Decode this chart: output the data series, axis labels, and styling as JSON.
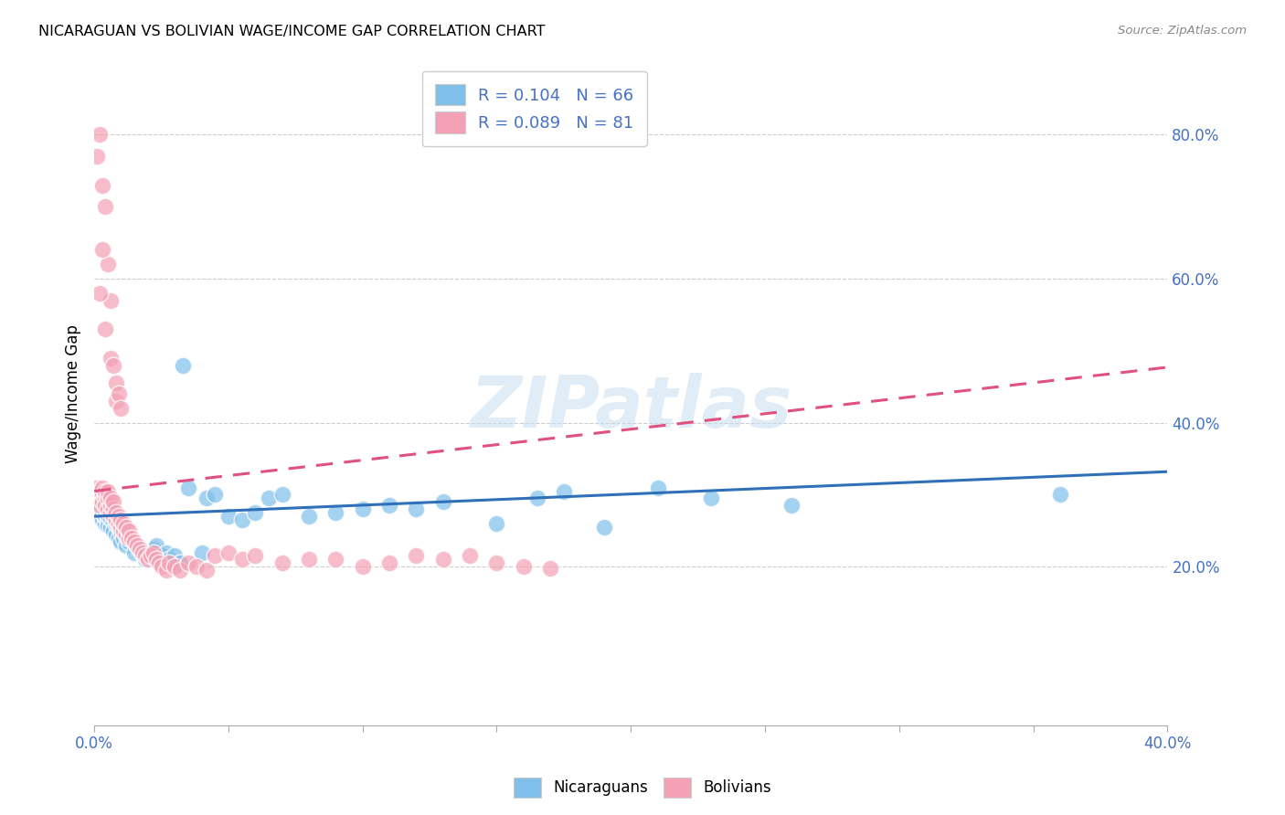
{
  "title": "NICARAGUAN VS BOLIVIAN WAGE/INCOME GAP CORRELATION CHART",
  "source": "Source: ZipAtlas.com",
  "ylabel": "Wage/Income Gap",
  "right_yticks": [
    0.2,
    0.4,
    0.6,
    0.8
  ],
  "right_yticklabels": [
    "20.0%",
    "40.0%",
    "60.0%",
    "80.0%"
  ],
  "xlim": [
    0.0,
    0.4
  ],
  "ylim": [
    -0.02,
    0.9
  ],
  "r_nicaraguan": 0.104,
  "n_nicaraguan": 66,
  "r_bolivian": 0.089,
  "n_bolivian": 81,
  "blue_color": "#7fbfea",
  "pink_color": "#f4a0b5",
  "blue_line_color": "#3070b8",
  "pink_line_color": "#e05080",
  "watermark": "ZIPatlas",
  "legend_label_nicaraguan": "Nicaraguans",
  "legend_label_bolivian": "Bolivians",
  "blue_intercept": 0.27,
  "blue_slope": 0.155,
  "pink_intercept": 0.305,
  "pink_slope": 0.43,
  "blue_scatter_x": [
    0.001,
    0.002,
    0.002,
    0.003,
    0.003,
    0.003,
    0.004,
    0.004,
    0.004,
    0.005,
    0.005,
    0.005,
    0.006,
    0.006,
    0.007,
    0.007,
    0.008,
    0.008,
    0.009,
    0.009,
    0.01,
    0.01,
    0.011,
    0.011,
    0.012,
    0.012,
    0.013,
    0.014,
    0.015,
    0.016,
    0.017,
    0.018,
    0.019,
    0.02,
    0.021,
    0.022,
    0.023,
    0.025,
    0.027,
    0.028,
    0.03,
    0.032,
    0.033,
    0.035,
    0.04,
    0.042,
    0.045,
    0.05,
    0.055,
    0.06,
    0.065,
    0.07,
    0.08,
    0.09,
    0.1,
    0.11,
    0.12,
    0.13,
    0.15,
    0.165,
    0.175,
    0.19,
    0.21,
    0.23,
    0.26,
    0.36
  ],
  "blue_scatter_y": [
    0.28,
    0.27,
    0.285,
    0.265,
    0.275,
    0.29,
    0.26,
    0.27,
    0.28,
    0.265,
    0.258,
    0.272,
    0.255,
    0.268,
    0.262,
    0.25,
    0.245,
    0.26,
    0.24,
    0.255,
    0.235,
    0.25,
    0.24,
    0.255,
    0.23,
    0.245,
    0.235,
    0.24,
    0.22,
    0.23,
    0.225,
    0.218,
    0.21,
    0.215,
    0.22,
    0.225,
    0.23,
    0.215,
    0.22,
    0.21,
    0.215,
    0.205,
    0.48,
    0.31,
    0.22,
    0.295,
    0.3,
    0.27,
    0.265,
    0.275,
    0.295,
    0.3,
    0.27,
    0.275,
    0.28,
    0.285,
    0.28,
    0.29,
    0.26,
    0.295,
    0.305,
    0.255,
    0.31,
    0.295,
    0.285,
    0.3
  ],
  "pink_scatter_x": [
    0.001,
    0.001,
    0.002,
    0.002,
    0.002,
    0.003,
    0.003,
    0.003,
    0.004,
    0.004,
    0.004,
    0.005,
    0.005,
    0.005,
    0.006,
    0.006,
    0.006,
    0.007,
    0.007,
    0.007,
    0.008,
    0.008,
    0.009,
    0.009,
    0.01,
    0.01,
    0.011,
    0.011,
    0.012,
    0.012,
    0.013,
    0.013,
    0.014,
    0.015,
    0.016,
    0.017,
    0.018,
    0.019,
    0.02,
    0.021,
    0.022,
    0.023,
    0.024,
    0.025,
    0.027,
    0.028,
    0.03,
    0.032,
    0.035,
    0.038,
    0.042,
    0.045,
    0.05,
    0.055,
    0.06,
    0.07,
    0.08,
    0.09,
    0.1,
    0.11,
    0.12,
    0.13,
    0.14,
    0.15,
    0.16,
    0.17,
    0.006,
    0.007,
    0.008,
    0.008,
    0.009,
    0.01,
    0.003,
    0.004,
    0.005,
    0.006,
    0.002,
    0.001,
    0.003,
    0.004,
    0.002
  ],
  "pink_scatter_y": [
    0.31,
    0.29,
    0.295,
    0.305,
    0.285,
    0.3,
    0.31,
    0.29,
    0.295,
    0.305,
    0.285,
    0.28,
    0.295,
    0.305,
    0.275,
    0.285,
    0.295,
    0.27,
    0.28,
    0.29,
    0.265,
    0.275,
    0.26,
    0.27,
    0.255,
    0.265,
    0.25,
    0.26,
    0.245,
    0.255,
    0.24,
    0.25,
    0.24,
    0.235,
    0.23,
    0.225,
    0.22,
    0.215,
    0.21,
    0.215,
    0.22,
    0.21,
    0.205,
    0.2,
    0.195,
    0.205,
    0.2,
    0.195,
    0.205,
    0.2,
    0.195,
    0.215,
    0.22,
    0.21,
    0.215,
    0.205,
    0.21,
    0.21,
    0.2,
    0.205,
    0.215,
    0.21,
    0.215,
    0.205,
    0.2,
    0.198,
    0.49,
    0.48,
    0.43,
    0.455,
    0.44,
    0.42,
    0.73,
    0.7,
    0.62,
    0.57,
    0.8,
    0.77,
    0.64,
    0.53,
    0.58
  ]
}
